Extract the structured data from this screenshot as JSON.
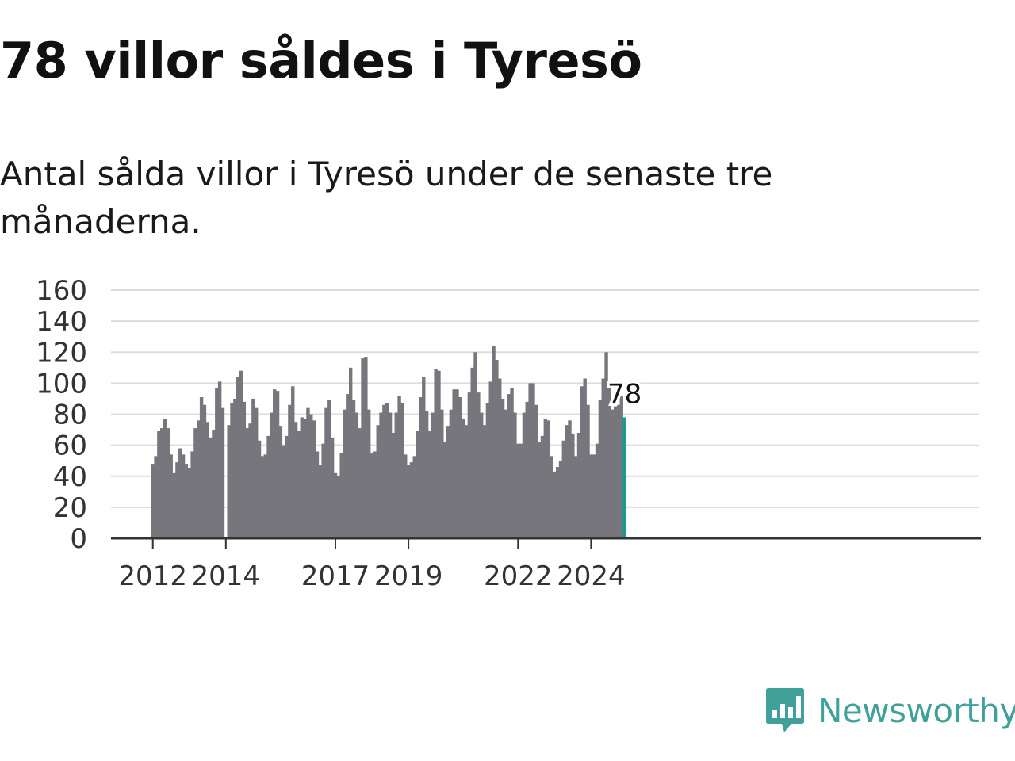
{
  "header": {
    "title": "78 villor såldes i Tyresö",
    "subtitle": "Antal sålda villor i Tyresö under de senaste tre månaderna."
  },
  "brand": {
    "name": "Newsworthy",
    "icon": "newsworthy-chart-bubble-icon",
    "color": "#3fa19a"
  },
  "colors": {
    "bar": "#77767c",
    "highlight": "#1c9a90",
    "grid": "#dddddd",
    "axis": "#333333"
  },
  "chart_data": {
    "type": "bar",
    "ylim": [
      0,
      160
    ],
    "yticks": [
      0,
      20,
      40,
      60,
      80,
      100,
      120,
      140,
      160
    ],
    "xtick_labels": [
      "2012",
      "2014",
      "2017",
      "2019",
      "2022",
      "2024"
    ],
    "xtick_label_index": [
      0,
      24,
      60,
      84,
      120,
      144
    ],
    "start": "2012-01",
    "grid": true,
    "highlight_label": "78",
    "values": [
      48,
      53,
      69,
      71,
      77,
      71,
      54,
      42,
      49,
      58,
      54,
      48,
      45,
      56,
      71,
      76,
      91,
      86,
      75,
      65,
      70,
      97,
      101,
      84,
      null,
      73,
      87,
      90,
      104,
      108,
      88,
      71,
      74,
      90,
      84,
      63,
      53,
      54,
      66,
      81,
      96,
      95,
      72,
      60,
      66,
      86,
      98,
      75,
      69,
      78,
      77,
      84,
      80,
      76,
      56,
      47,
      61,
      84,
      89,
      65,
      42,
      40,
      55,
      83,
      93,
      110,
      89,
      81,
      71,
      116,
      117,
      83,
      55,
      56,
      73,
      81,
      86,
      87,
      81,
      68,
      81,
      92,
      87,
      54,
      47,
      49,
      53,
      69,
      91,
      104,
      82,
      69,
      81,
      109,
      108,
      83,
      62,
      72,
      83,
      96,
      96,
      91,
      77,
      73,
      94,
      110,
      120,
      94,
      81,
      73,
      87,
      101,
      124,
      115,
      103,
      90,
      83,
      93,
      97,
      81,
      61,
      61,
      81,
      88,
      100,
      100,
      86,
      62,
      66,
      77,
      76,
      53,
      43,
      46,
      50,
      63,
      73,
      76,
      67,
      53,
      68,
      98,
      103,
      86,
      54,
      54,
      61,
      89,
      103,
      120,
      100,
      83,
      85,
      86,
      92,
      78
    ],
    "highlight_index": 155
  }
}
